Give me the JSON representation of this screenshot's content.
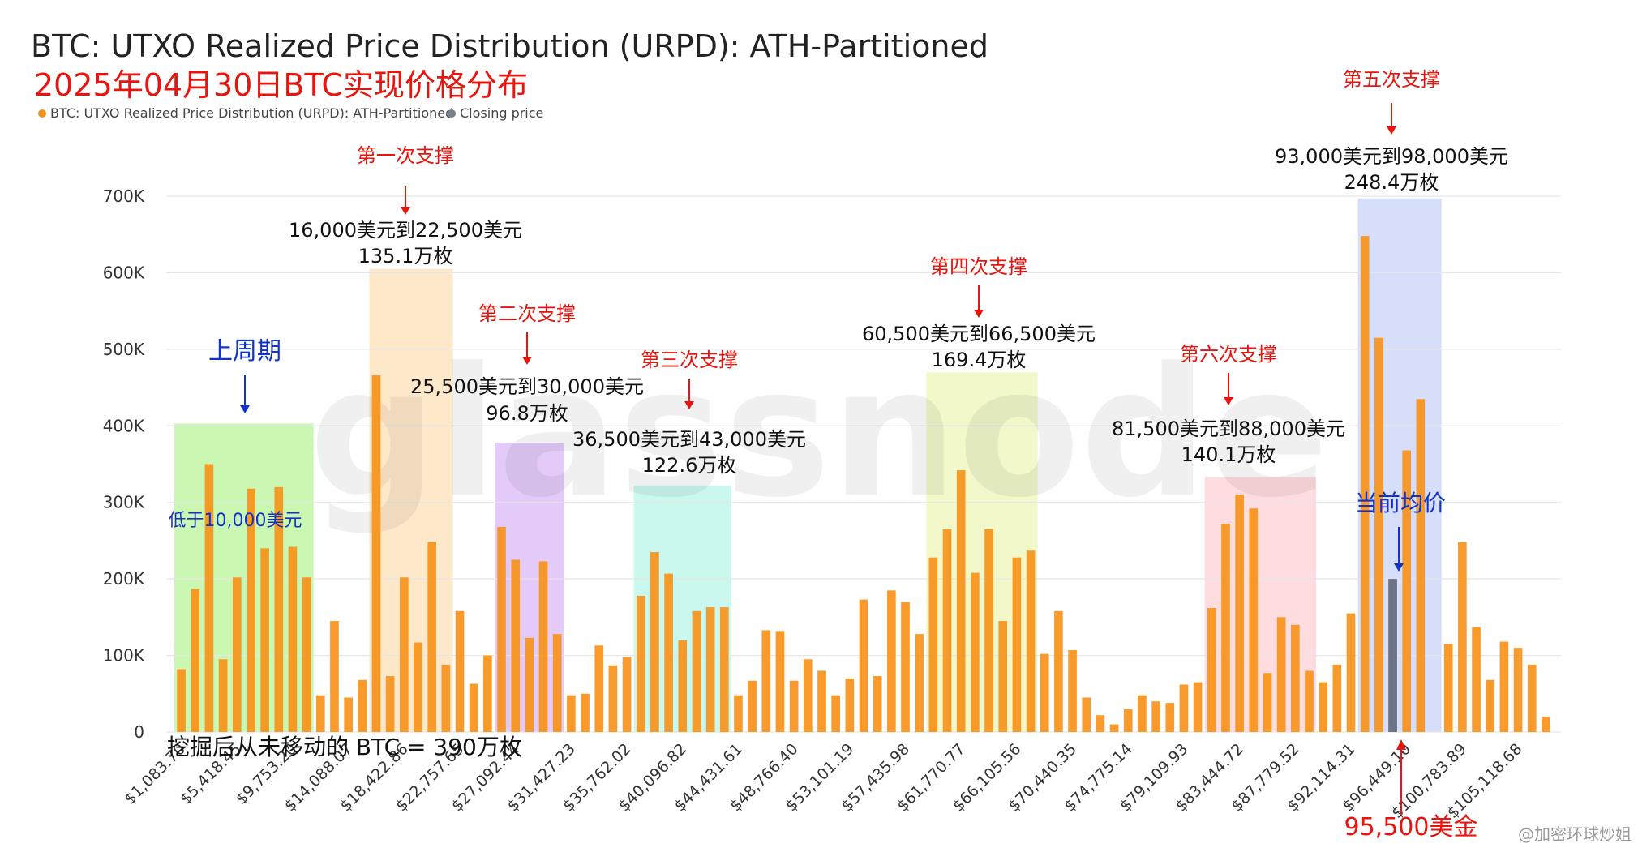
{
  "header": {
    "title": "BTC: UTXO Realized Price Distribution (URPD): ATH-Partitioned",
    "subtitle": "2025年04月30日BTC实现价格分布"
  },
  "legend": {
    "items": [
      {
        "label": "BTC: UTXO Realized Price Distribution (URPD): ATH-Partitioned",
        "color": "#f7931a"
      },
      {
        "label": "Closing price",
        "color": "#7a7f8c"
      }
    ]
  },
  "watermark": {
    "text": "glassnode"
  },
  "footer": {
    "mined_never_moved": "挖掘后从未移动的 BTC = 390万枚"
  },
  "credit": "@加密环球炒姐",
  "colors": {
    "bar": "#f7931a",
    "closing": "#6b7489",
    "grid": "#e6e6e6",
    "annotation_red": "#e8150f",
    "annotation_blue": "#1133cc"
  },
  "zones": [
    {
      "key": "prev_cycle",
      "label": "上周期",
      "range": "低于10,000美元",
      "amount": "",
      "color": "#b8f59a"
    },
    {
      "key": "support1",
      "label": "第一次支撑",
      "range": "16,000美元到22,500美元",
      "amount": "135.1万枚",
      "color": "#fde0b8"
    },
    {
      "key": "support2",
      "label": "第二次支撑",
      "range": "25,500美元到30,000美元",
      "amount": "96.8万枚",
      "color": "#d9b8f5"
    },
    {
      "key": "support3",
      "label": "第三次支撑",
      "range": "36,500美元到43,000美元",
      "amount": "122.6万枚",
      "color": "#b8f5e8"
    },
    {
      "key": "support4",
      "label": "第四次支撑",
      "range": "60,500美元到66,500美元",
      "amount": "169.4万枚",
      "color": "#eef5b8"
    },
    {
      "key": "support5",
      "label": "第五次支撑",
      "range": "93,000美元到98,000美元",
      "amount": "248.4万枚",
      "color": "#c8d3f7"
    },
    {
      "key": "support6",
      "label": "第六次支撑",
      "range": "81,500美元到88,000美元",
      "amount": "140.1万枚",
      "color": "#fdd0d6"
    }
  ],
  "current_price": {
    "label": "当前均价",
    "value_label": "95,500美金"
  },
  "chart_data": {
    "type": "bar",
    "ylim": [
      0,
      700000
    ],
    "yticks": [
      0,
      100000,
      200000,
      300000,
      400000,
      500000,
      600000,
      700000
    ],
    "ytick_labels": [
      "0",
      "100K",
      "200K",
      "300K",
      "400K",
      "500K",
      "600K",
      "700K"
    ],
    "xtick_labels": [
      "$1,083.70",
      "$5,418.45",
      "$9,753.20",
      "$14,088.07",
      "$18,422.86",
      "$22,757.65",
      "$27,092.44",
      "$31,427.23",
      "$35,762.02",
      "$40,096.82",
      "$44,431.61",
      "$48,766.40",
      "$53,101.19",
      "$57,435.98",
      "$61,770.77",
      "$66,105.56",
      "$70,440.35",
      "$74,775.14",
      "$79,109.93",
      "$83,444.72",
      "$87,779.52",
      "$92,114.31",
      "$96,449.10",
      "$100,783.89",
      "$105,118.68"
    ],
    "series": [
      {
        "name": "BTC: UTXO Realized Price Distribution (URPD): ATH-Partitioned",
        "values": [
          82000,
          187000,
          350000,
          95000,
          202000,
          318000,
          240000,
          320000,
          242000,
          202000,
          48000,
          145000,
          45000,
          68000,
          466000,
          73000,
          202000,
          117000,
          248000,
          88000,
          158000,
          63000,
          100000,
          268000,
          225000,
          123000,
          223000,
          128000,
          48000,
          50000,
          113000,
          87000,
          98000,
          178000,
          235000,
          207000,
          120000,
          158000,
          163000,
          163000,
          48000,
          67000,
          133000,
          132000,
          67000,
          95000,
          80000,
          48000,
          70000,
          173000,
          73000,
          185000,
          170000,
          128000,
          228000,
          265000,
          342000,
          208000,
          265000,
          145000,
          228000,
          237000,
          102000,
          158000,
          107000,
          45000,
          22000,
          10000,
          30000,
          48000,
          40000,
          38000,
          62000,
          65000,
          162000,
          272000,
          310000,
          292000,
          77000,
          150000,
          140000,
          80000,
          65000,
          88000,
          155000,
          648000,
          515000,
          200000,
          368000,
          435000,
          0,
          115000,
          248000,
          137000,
          68000,
          118000,
          110000,
          88000,
          20000
        ]
      },
      {
        "name": "Closing price",
        "index": 87,
        "value": 200000
      }
    ]
  }
}
